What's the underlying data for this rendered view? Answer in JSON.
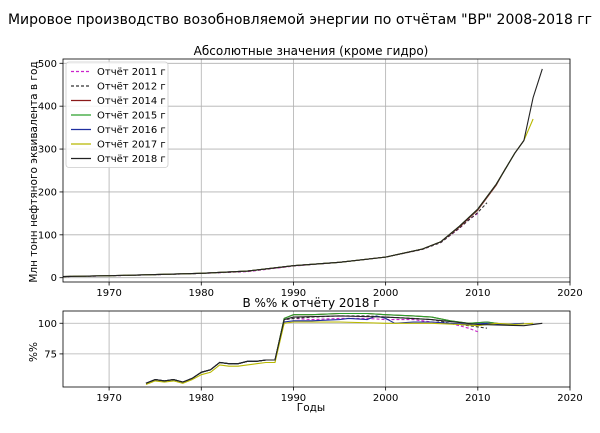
{
  "figure": {
    "suptitle": "Мировое производство возобновляемой энергии по отчётам \"BP\" 2008-2018 гг"
  },
  "chart_data": [
    {
      "type": "line",
      "title": "Абсолютные значения (кроме гидро)",
      "xlabel": "",
      "ylabel": "Млн тонн нефтяного эквивалента в год",
      "xlim": [
        1965,
        2020
      ],
      "ylim": [
        -10,
        510
      ],
      "xticks": [
        1970,
        1980,
        1990,
        2000,
        2010,
        2020
      ],
      "yticks": [
        0,
        100,
        200,
        300,
        400,
        500
      ],
      "grid": true,
      "legend": "top-left",
      "series": [
        {
          "name": "Отчёт 2011 г",
          "color": "#cc22cc",
          "dash": "3,2",
          "x": [
            1965,
            1970,
            1975,
            1980,
            1985,
            1990,
            1995,
            2000,
            2004,
            2006,
            2008,
            2009,
            2010
          ],
          "y": [
            2.5,
            4.5,
            7,
            10,
            14,
            27,
            36,
            48,
            66,
            82,
            115,
            135,
            150
          ]
        },
        {
          "name": "Отчёт 2012 г",
          "color": "#333333",
          "dash": "3,2",
          "x": [
            1965,
            1970,
            1975,
            1980,
            1985,
            1990,
            1995,
            2000,
            2004,
            2006,
            2008,
            2010,
            2011
          ],
          "y": [
            2.5,
            4.5,
            7,
            10,
            15,
            28,
            36,
            48,
            66,
            82,
            116,
            152,
            175
          ]
        },
        {
          "name": "Отчёт 2014 г",
          "color": "#8b1a1a",
          "dash": "",
          "x": [
            1965,
            1970,
            1975,
            1980,
            1985,
            1990,
            1995,
            2000,
            2004,
            2006,
            2008,
            2010,
            2012,
            2013
          ],
          "y": [
            2.6,
            4.6,
            7.2,
            10.3,
            15.5,
            28,
            36,
            48,
            67,
            84,
            118,
            158,
            216,
            255
          ]
        },
        {
          "name": "Отчёт 2015 г",
          "color": "#2ca02c",
          "dash": "",
          "x": [
            1965,
            1970,
            1975,
            1980,
            1985,
            1990,
            1995,
            2000,
            2004,
            2006,
            2008,
            2010,
            2012,
            2014
          ],
          "y": [
            2.6,
            4.6,
            7.2,
            10.3,
            15.5,
            28,
            36,
            48,
            67,
            84,
            120,
            160,
            218,
            290
          ]
        },
        {
          "name": "Отчёт 2016 г",
          "color": "#1f2f9f",
          "dash": "",
          "x": [
            1965,
            1970,
            1975,
            1980,
            1985,
            1990,
            1995,
            2000,
            2004,
            2006,
            2008,
            2010,
            2012,
            2014,
            2015
          ],
          "y": [
            2.6,
            4.6,
            7.2,
            10.3,
            15.5,
            28,
            36,
            48,
            67,
            84,
            120,
            160,
            218,
            290,
            320
          ]
        },
        {
          "name": "Отчёт 2017 г",
          "color": "#b8b800",
          "dash": "",
          "x": [
            1965,
            1970,
            1975,
            1980,
            1985,
            1990,
            1995,
            2000,
            2004,
            2006,
            2008,
            2010,
            2012,
            2014,
            2015,
            2016
          ],
          "y": [
            2.6,
            4.6,
            7.2,
            10.3,
            15.5,
            28,
            36,
            48,
            67,
            84,
            120,
            160,
            218,
            290,
            320,
            370
          ]
        },
        {
          "name": "Отчёт 2018 г",
          "color": "#222222",
          "dash": "",
          "x": [
            1965,
            1970,
            1975,
            1980,
            1985,
            1990,
            1995,
            2000,
            2004,
            2006,
            2008,
            2010,
            2012,
            2014,
            2015,
            2016,
            2017
          ],
          "y": [
            2.6,
            4.6,
            7.2,
            10.3,
            15.5,
            28,
            36,
            48,
            67,
            84,
            120,
            160,
            218,
            290,
            320,
            420,
            487
          ]
        }
      ]
    },
    {
      "type": "line",
      "title": "В %% к отчёту 2018 г",
      "xlabel": "Годы",
      "ylabel": "%%",
      "xlim": [
        1965,
        2020
      ],
      "ylim": [
        48,
        110
      ],
      "xticks": [
        1970,
        1980,
        1990,
        2000,
        2010,
        2020
      ],
      "yticks": [
        75,
        100
      ],
      "grid": true,
      "series": [
        {
          "name": "Отчёт 2011 г",
          "color": "#cc22cc",
          "dash": "3,2",
          "x": [
            1974,
            1975,
            1976,
            1977,
            1978,
            1979,
            1980,
            1981,
            1982,
            1983,
            1984,
            1985,
            1986,
            1987,
            1988,
            1989,
            1990,
            1992,
            1995,
            1998,
            2000,
            2003,
            2005,
            2007,
            2008,
            2009,
            2010
          ],
          "y": [
            51,
            54,
            53,
            54,
            52,
            55,
            60,
            62,
            68,
            67,
            67,
            69,
            69,
            70,
            70,
            103,
            104,
            103,
            104,
            104,
            103,
            103,
            101,
            100,
            98,
            96,
            93
          ]
        },
        {
          "name": "Отчёт 2012 г",
          "color": "#333333",
          "dash": "3,2",
          "x": [
            1974,
            1975,
            1976,
            1977,
            1978,
            1979,
            1980,
            1981,
            1982,
            1983,
            1984,
            1985,
            1986,
            1987,
            1988,
            1989,
            1990,
            1992,
            1995,
            1998,
            2000,
            2003,
            2005,
            2007,
            2008,
            2009,
            2010,
            2011
          ],
          "y": [
            51,
            54,
            53,
            54,
            52,
            55,
            60,
            62,
            68,
            67,
            67,
            69,
            69,
            70,
            70,
            103,
            104,
            105,
            106,
            106,
            105,
            104,
            103,
            100,
            99,
            98,
            97,
            96
          ]
        },
        {
          "name": "Отчёт 2014 г",
          "color": "#8b1a1a",
          "dash": "",
          "x": [
            1974,
            1975,
            1976,
            1977,
            1978,
            1979,
            1980,
            1981,
            1982,
            1983,
            1984,
            1985,
            1986,
            1987,
            1988,
            1989,
            1990,
            1992,
            1995,
            1998,
            2000,
            2003,
            2005,
            2007,
            2009,
            2011,
            2013
          ],
          "y": [
            51,
            54,
            53,
            54,
            52,
            55,
            60,
            62,
            68,
            67,
            67,
            69,
            69,
            70,
            70,
            104,
            107,
            107,
            108,
            108,
            107,
            106,
            105,
            102,
            100,
            101,
            99
          ]
        },
        {
          "name": "Отчёт 2015 г",
          "color": "#2ca02c",
          "dash": "",
          "x": [
            1974,
            1975,
            1976,
            1977,
            1978,
            1979,
            1980,
            1981,
            1982,
            1983,
            1984,
            1985,
            1986,
            1987,
            1988,
            1989,
            1990,
            1992,
            1995,
            1998,
            2000,
            2003,
            2005,
            2007,
            2009,
            2011,
            2013,
            2014
          ],
          "y": [
            51,
            54,
            53,
            54,
            52,
            55,
            60,
            62,
            68,
            67,
            67,
            69,
            69,
            70,
            70,
            104,
            107,
            107,
            108,
            108,
            107,
            106,
            105,
            102,
            100,
            101,
            99,
            99
          ]
        },
        {
          "name": "Отчёт 2016 г",
          "color": "#1f2f9f",
          "dash": "",
          "x": [
            1974,
            1975,
            1976,
            1977,
            1978,
            1979,
            1980,
            1981,
            1982,
            1983,
            1984,
            1985,
            1986,
            1987,
            1988,
            1989,
            1990,
            1992,
            1995,
            1996,
            1998,
            1999,
            2000,
            2001,
            2003,
            2005,
            2007,
            2009,
            2011,
            2013,
            2015
          ],
          "y": [
            51,
            54,
            53,
            54,
            52,
            55,
            60,
            62,
            68,
            67,
            67,
            69,
            69,
            70,
            70,
            101,
            102,
            102,
            103,
            104,
            103,
            106,
            104,
            100,
            101,
            101,
            100,
            99,
            100,
            99,
            100
          ]
        },
        {
          "name": "Отчёт 2017 г",
          "color": "#b8b800",
          "dash": "",
          "x": [
            1974,
            1975,
            1976,
            1977,
            1978,
            1979,
            1980,
            1981,
            1982,
            1983,
            1984,
            1985,
            1986,
            1987,
            1988,
            1989,
            1990,
            1995,
            2000,
            2005,
            2008,
            2010,
            2012,
            2014,
            2016
          ],
          "y": [
            50,
            53,
            52,
            53,
            51,
            54,
            58,
            60,
            66,
            65,
            65,
            66,
            67,
            68,
            68,
            100,
            101,
            101,
            100,
            100,
            99,
            98,
            100,
            99,
            100
          ]
        },
        {
          "name": "Отчёт 2018 г",
          "color": "#222222",
          "dash": "",
          "x": [
            1974,
            1975,
            1976,
            1977,
            1978,
            1979,
            1980,
            1981,
            1982,
            1983,
            1984,
            1985,
            1986,
            1987,
            1988,
            1989,
            1990,
            1995,
            2000,
            2005,
            2010,
            2015,
            2017
          ],
          "y": [
            51,
            54,
            53,
            54,
            52,
            55,
            60,
            62,
            68,
            67,
            67,
            69,
            69,
            70,
            70,
            103,
            105,
            106,
            105,
            103,
            99,
            98,
            100
          ]
        }
      ]
    }
  ]
}
